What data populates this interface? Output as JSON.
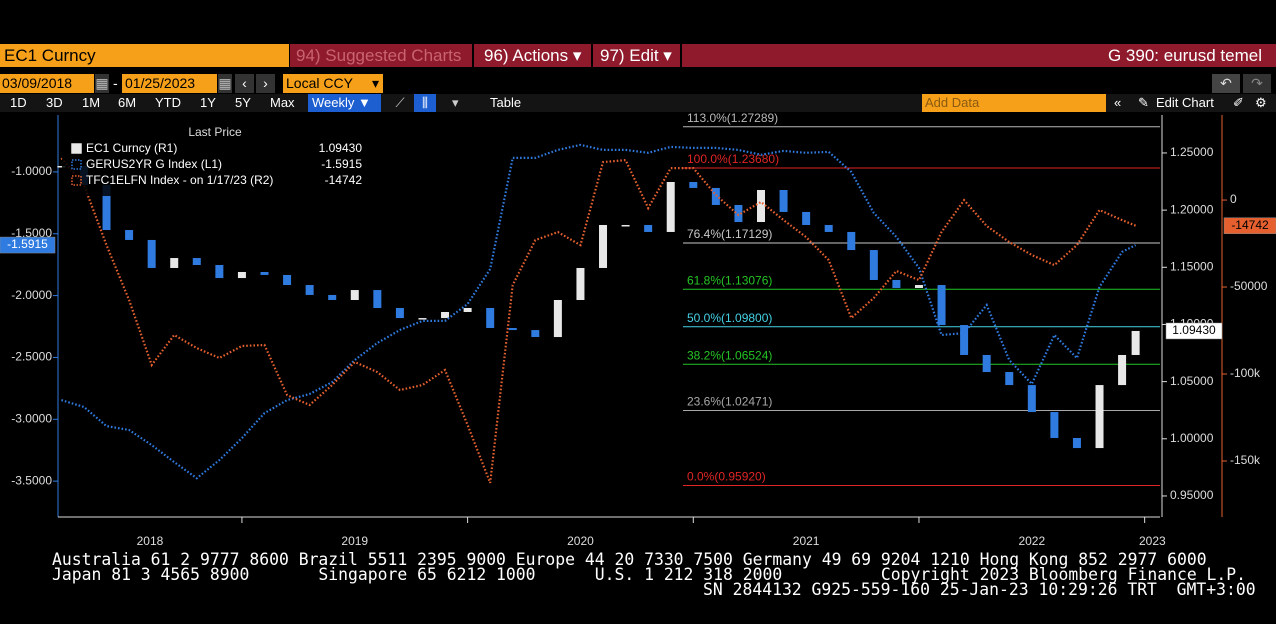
{
  "ui": {
    "security": "EC1 Curncy",
    "suggested": "94) Suggested Charts",
    "actions": "96) Actions ▾",
    "edit": "97) Edit ▾",
    "page_title": "G 390: eurusd temel",
    "start_date": "03/09/2018",
    "date_sep": "-",
    "end_date": "01/25/2023",
    "currency": "Local CCY",
    "periods": [
      "1D",
      "3D",
      "1M",
      "6M",
      "YTD",
      "1Y",
      "5Y",
      "Max"
    ],
    "frequency": "Weekly ▼",
    "table": "Table",
    "add_data": "Add Data",
    "edit_chart": "Edit Chart",
    "footer": [
      "Australia 61 2 9777 8600 Brazil 5511 2395 9000 Europe 44 20 7330 7500 Germany 49 69 9204 1210 Hong Kong 852 2977 6000",
      "Japan 81 3 4565 8900       Singapore 65 6212 1000      U.S. 1 212 318 2000          Copyright 2023 Bloomberg Finance L.P.",
      "SN 2844132 G925-559-160 25-Jan-23 10:29:26 TRT  GMT+3:00"
    ]
  },
  "chart_data": {
    "type": "line",
    "legend_title": "Last Price",
    "x": [
      2018.2,
      2018.3,
      2018.4,
      2018.5,
      2018.6,
      2018.7,
      2018.8,
      2018.9,
      2019.0,
      2019.1,
      2019.2,
      2019.3,
      2019.4,
      2019.5,
      2019.6,
      2019.7,
      2019.8,
      2019.9,
      2020.0,
      2020.1,
      2020.2,
      2020.3,
      2020.4,
      2020.5,
      2020.6,
      2020.7,
      2020.8,
      2020.9,
      2021.0,
      2021.1,
      2021.2,
      2021.3,
      2021.4,
      2021.5,
      2021.6,
      2021.7,
      2021.8,
      2021.9,
      2022.0,
      2022.1,
      2022.2,
      2022.3,
      2022.4,
      2022.5,
      2022.6,
      2022.7,
      2022.8,
      2022.9,
      2022.96
    ],
    "xlim": [
      2018.185,
      2023.068
    ],
    "xticks": [
      2018,
      2019,
      2020,
      2021,
      2022,
      2023
    ],
    "ylim": [
      -3.79,
      -0.54
    ],
    "yticks": [
      {
        "value": -1,
        "label": "-1.0000"
      },
      {
        "value": -1.5,
        "label": "-1.5000"
      },
      {
        "value": -2,
        "label": "-2.0000"
      },
      {
        "value": -2.5,
        "label": "-2.5000"
      },
      {
        "value": -3,
        "label": "-3.0000"
      },
      {
        "value": -3.5,
        "label": "-3.5000"
      }
    ],
    "y2lim": [
      0.9316,
      1.2832
    ],
    "y2ticks": [
      {
        "value": 0.95,
        "label": "0.95000"
      },
      {
        "value": 1,
        "label": "1.00000"
      },
      {
        "value": 1.05,
        "label": "1.05000"
      },
      {
        "value": 1.1,
        "label": "1.10000"
      },
      {
        "value": 1.15,
        "label": "1.15000"
      },
      {
        "value": 1.2,
        "label": "1.20000"
      },
      {
        "value": 1.25,
        "label": "1.25000"
      }
    ],
    "y3lim": [
      -182200,
      48900
    ],
    "y3ticks": [
      0,
      -50000,
      {
        "value": -100000,
        "label": "-100k"
      },
      {
        "value": -150000,
        "label": "-150k"
      }
    ],
    "series": [
      {
        "name": "EC1 Curncy  (R1)",
        "style": "candle",
        "axis": "y2",
        "color": "#e8e8e8",
        "down_color": "#2f7be0",
        "last": {
          "value": 1.0943,
          "label": "1.09430"
        },
        "values": [
          1.2386,
          1.222,
          1.1826,
          1.1739,
          1.1494,
          1.1581,
          1.152,
          1.1406,
          1.1459,
          1.1433,
          1.1345,
          1.1258,
          1.1214,
          1.1301,
          1.1144,
          1.1056,
          1.1056,
          1.1109,
          1.1144,
          1.0969,
          1.0951,
          1.089,
          1.1214,
          1.1494,
          1.187,
          1.187,
          1.1809,
          1.2246,
          1.2194,
          1.2045,
          1.1896,
          1.2176,
          1.1984,
          1.187,
          1.1809,
          1.1651,
          1.1389,
          1.1319,
          1.1345,
          1.0995,
          1.0733,
          1.0584,
          1.047,
          1.0234,
          1.0007,
          0.9919,
          1.047,
          1.0733,
          1.0943
        ]
      },
      {
        "name": "GERUS2YR G Index  (L1)",
        "style": "dotted",
        "axis": "y",
        "color": "#2f7be0",
        "last": -1.5915,
        "values": [
          -2.845,
          -2.901,
          -3.055,
          -3.087,
          -3.209,
          -3.346,
          -3.476,
          -3.33,
          -3.152,
          -2.95,
          -2.845,
          -2.796,
          -2.699,
          -2.521,
          -2.383,
          -2.278,
          -2.205,
          -2.205,
          -2.068,
          -1.785,
          -0.887,
          -0.887,
          -0.822,
          -0.782,
          -0.822,
          -0.822,
          -0.846,
          -0.798,
          -0.806,
          -0.806,
          -0.822,
          -0.862,
          -0.83,
          -0.846,
          -0.838,
          -1.0,
          -1.332,
          -1.526,
          -1.777,
          -2.319,
          -2.303,
          -2.076,
          -2.521,
          -2.715,
          -2.319,
          -2.505,
          -1.93,
          -1.647,
          -1.5915
        ]
      },
      {
        "name": "TFC1ELFN Index -  on 1/17/23  (R2)",
        "style": "dotted",
        "axis": "y3",
        "color": "#e5602e",
        "last": -14742,
        "values": [
          24100,
          8600,
          -25900,
          -57500,
          -94800,
          -77600,
          -85100,
          -90800,
          -83900,
          -83300,
          -112100,
          -117800,
          -106300,
          -93100,
          -98900,
          -109200,
          -106300,
          -97700,
          -129300,
          -162600,
          -48900,
          -23000,
          -18400,
          -25900,
          21800,
          23000,
          -4600,
          18400,
          18400,
          2900,
          -8600,
          -1100,
          -11500,
          -21300,
          -34500,
          -67800,
          -56300,
          -40800,
          -46000,
          -18400,
          0,
          -14900,
          -24100,
          -31600,
          -37400,
          -25900,
          -5700,
          -11500,
          -14742
        ]
      }
    ],
    "fib_levels": [
      {
        "label": "113.0%(1.27289)",
        "value": 1.27289,
        "color": "#b8b8b8"
      },
      {
        "label": "100.0%(1.23680)",
        "value": 1.2368,
        "color": "#e02525"
      },
      {
        "label": "76.4%(1.17129)",
        "value": 1.17129,
        "color": "#c8c8c8"
      },
      {
        "label": "61.8%(1.13076)",
        "value": 1.13076,
        "color": "#25c425"
      },
      {
        "label": "50.0%(1.09800)",
        "value": 1.098,
        "color": "#45d2e6"
      },
      {
        "label": "38.2%(1.06524)",
        "value": 1.06524,
        "color": "#25c425"
      },
      {
        "label": "23.6%(1.02471)",
        "value": 1.02471,
        "color": "#a8a8a8"
      },
      {
        "label": "0.0%(0.95920)",
        "value": 0.9592,
        "color": "#e02525"
      }
    ]
  }
}
